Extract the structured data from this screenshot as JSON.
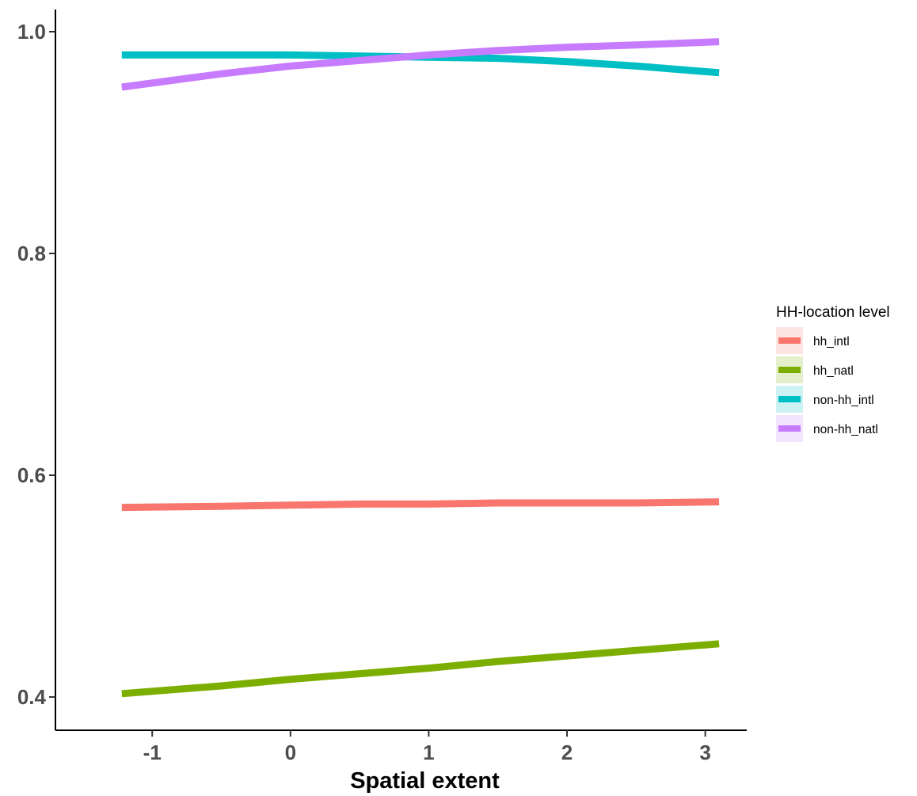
{
  "chart_data": {
    "type": "line",
    "title": "",
    "xlabel": "Spatial extent",
    "ylabel": "",
    "xlim": [
      -1.7,
      3.3
    ],
    "ylim": [
      0.37,
      1.02
    ],
    "x_ticks": [
      -1,
      0,
      1,
      2,
      3
    ],
    "x_tick_labels": [
      "-1",
      "0",
      "1",
      "2",
      "3"
    ],
    "y_ticks": [
      0.4,
      0.6,
      0.8,
      1.0
    ],
    "y_tick_labels": [
      "0.4",
      "0.6",
      "0.8",
      "1.0"
    ],
    "grid": false,
    "legend": {
      "title": "HH-location level",
      "position": "right"
    },
    "series": [
      {
        "name": "hh_intl",
        "color": "#F8766D",
        "x": [
          -1.22,
          -0.5,
          0,
          0.5,
          1,
          1.5,
          2,
          2.5,
          3.1
        ],
        "y": [
          0.571,
          0.572,
          0.573,
          0.574,
          0.574,
          0.575,
          0.575,
          0.575,
          0.576
        ]
      },
      {
        "name": "hh_natl",
        "color": "#7CAE00",
        "x": [
          -1.22,
          -0.5,
          0,
          0.5,
          1,
          1.5,
          2,
          2.5,
          3.1
        ],
        "y": [
          0.403,
          0.41,
          0.416,
          0.421,
          0.426,
          0.432,
          0.437,
          0.442,
          0.448
        ]
      },
      {
        "name": "non-hh_intl",
        "color": "#00BFC4",
        "x": [
          -1.22,
          -0.5,
          0,
          0.5,
          1,
          1.5,
          2,
          2.5,
          3.1
        ],
        "y": [
          0.979,
          0.979,
          0.979,
          0.978,
          0.977,
          0.976,
          0.973,
          0.969,
          0.963
        ]
      },
      {
        "name": "non-hh_natl",
        "color": "#C77CFF",
        "x": [
          -1.22,
          -0.5,
          0,
          0.5,
          1,
          1.5,
          2,
          2.5,
          3.1
        ],
        "y": [
          0.95,
          0.962,
          0.969,
          0.974,
          0.979,
          0.983,
          0.986,
          0.988,
          0.991
        ]
      }
    ]
  }
}
